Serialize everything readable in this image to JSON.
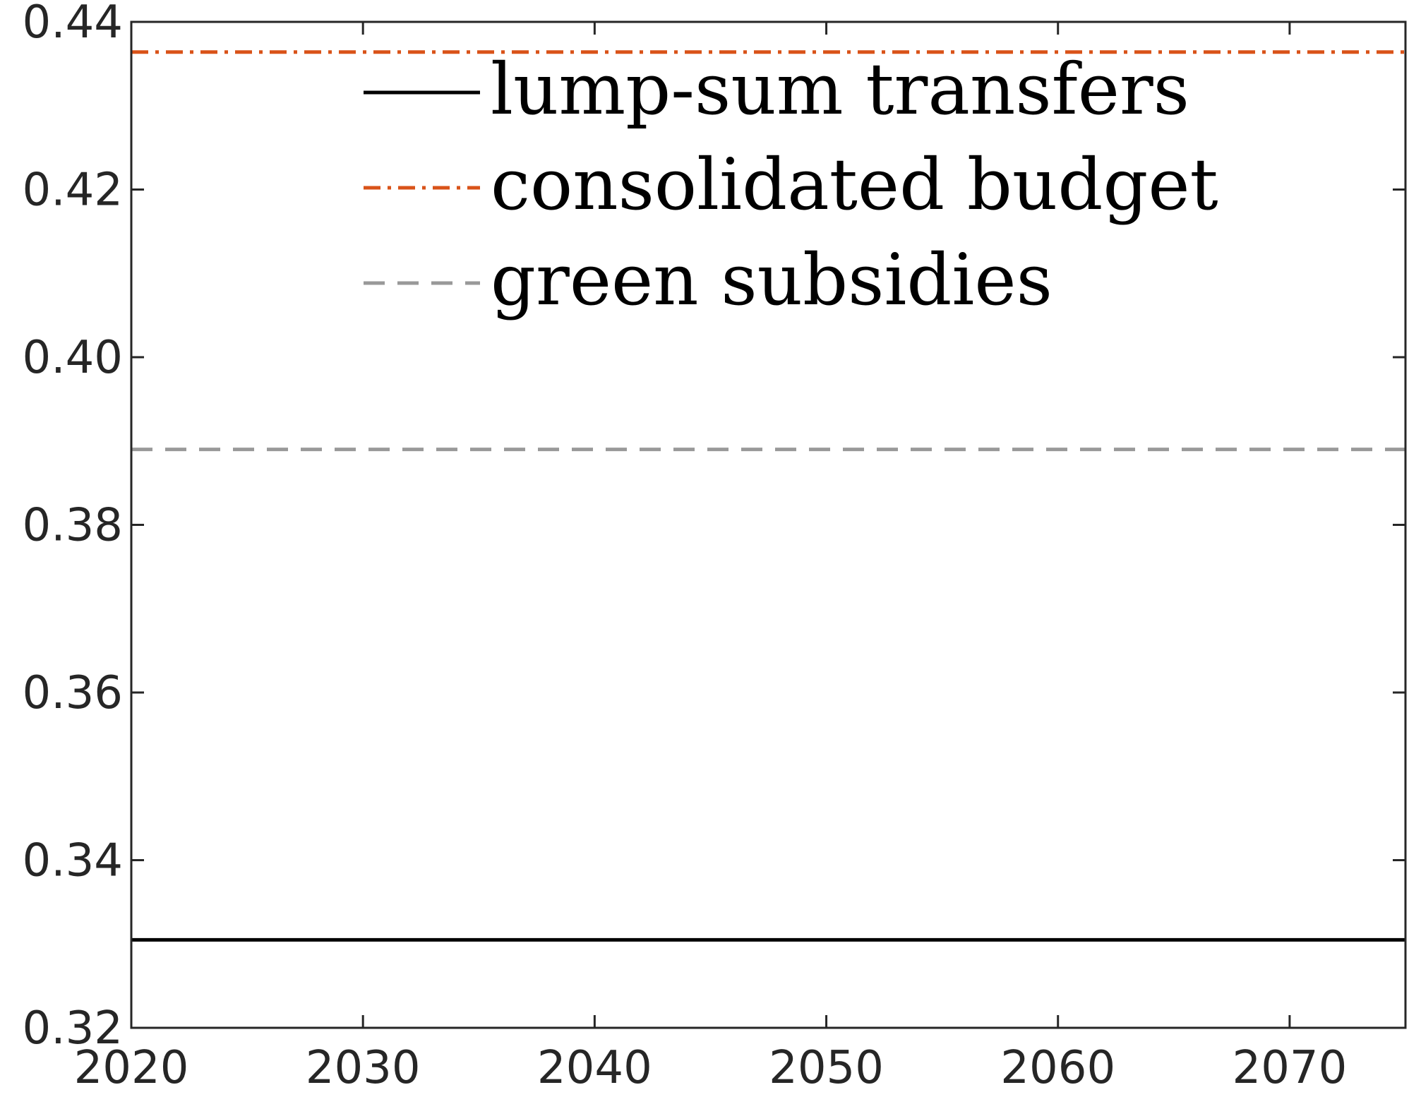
{
  "chart_data": {
    "type": "line",
    "title": "",
    "xlabel": "",
    "ylabel": "",
    "xlim": [
      2020,
      2075
    ],
    "ylim": [
      0.32,
      0.44
    ],
    "xticks": [
      2020,
      2030,
      2040,
      2050,
      2060,
      2070
    ],
    "xtick_labels": [
      "2020",
      "2030",
      "2040",
      "2050",
      "2060",
      "2070"
    ],
    "yticks": [
      0.32,
      0.34,
      0.36,
      0.38,
      0.4,
      0.42,
      0.44
    ],
    "ytick_labels": [
      "0.32",
      "0.34",
      "0.36",
      "0.38",
      "0.40",
      "0.42",
      "0.44"
    ],
    "grid": false,
    "legend_position": "top-center",
    "series": [
      {
        "name": "lump-sum transfers",
        "x": [
          2020,
          2075
        ],
        "y": [
          0.3305,
          0.3305
        ],
        "color": "#000000",
        "style": "solid"
      },
      {
        "name": "consolidated budget",
        "x": [
          2020,
          2075
        ],
        "y": [
          0.4364,
          0.4364
        ],
        "color": "#D95319",
        "style": "dash-dot"
      },
      {
        "name": "green subsidies",
        "x": [
          2020,
          2075
        ],
        "y": [
          0.389,
          0.389
        ],
        "color": "#999999",
        "style": "dashed"
      }
    ]
  }
}
